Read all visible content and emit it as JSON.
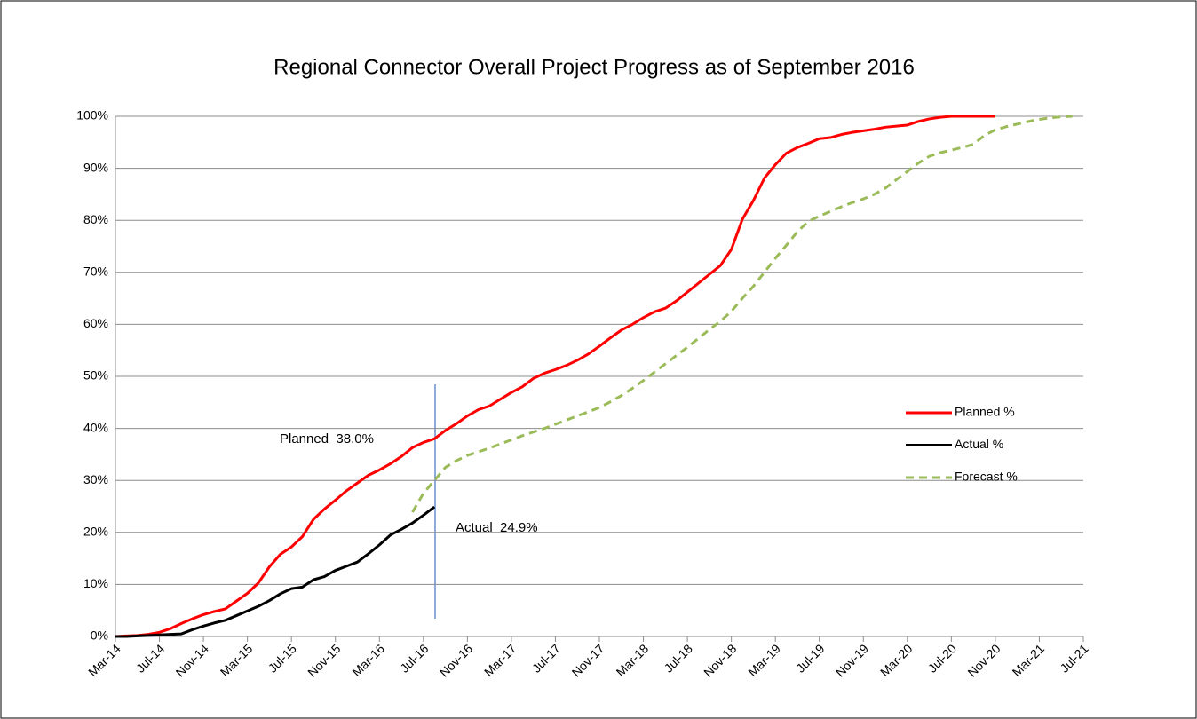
{
  "chart_data": {
    "type": "line",
    "title": "Regional Connector Overall Project Progress as of September 2016",
    "categories": [
      "Mar-14",
      null,
      null,
      null,
      "Jul-14",
      null,
      null,
      null,
      "Nov-14",
      null,
      null,
      null,
      "Mar-15",
      null,
      null,
      null,
      "Jul-15",
      null,
      null,
      null,
      "Nov-15",
      null,
      null,
      null,
      "Mar-16",
      null,
      null,
      null,
      "Jul-16",
      null,
      null,
      null,
      "Nov-16",
      null,
      null,
      null,
      "Mar-17",
      null,
      null,
      null,
      "Jul-17",
      null,
      null,
      null,
      "Nov-17",
      null,
      null,
      null,
      "Mar-18",
      null,
      null,
      null,
      "Jul-18",
      null,
      null,
      null,
      "Nov-18",
      null,
      null,
      null,
      "Mar-19",
      null,
      null,
      null,
      "Jul-19",
      null,
      null,
      null,
      "Nov-19",
      null,
      null,
      null,
      "Mar-20",
      null,
      null,
      null,
      "Jul-20",
      null,
      null,
      null,
      "Nov-20",
      null,
      null,
      null,
      "Mar-21",
      null,
      null,
      null,
      "Jul-21"
    ],
    "series": [
      {
        "name": "Planned %",
        "color": "#ff0000",
        "dash": false,
        "values": [
          0,
          0.1,
          0.2,
          0.4,
          0.8,
          1.5,
          2.5,
          3.4,
          4.2,
          4.8,
          5.3,
          6.8,
          8.3,
          10.3,
          13.4,
          15.8,
          17.2,
          19.2,
          22.5,
          24.5,
          26.2,
          28.0,
          29.5,
          31.0,
          32.0,
          33.2,
          34.6,
          36.3,
          37.3,
          38.0,
          39.6,
          40.9,
          42.4,
          43.6,
          44.3,
          45.6,
          46.9,
          48.0,
          49.6,
          50.6,
          51.3,
          52.1,
          53.1,
          54.3,
          55.8,
          57.4,
          58.9,
          60.0,
          61.3,
          62.4,
          63.1,
          64.5,
          66.2,
          67.9,
          69.6,
          71.3,
          74.4,
          80.2,
          83.8,
          88.1,
          90.7,
          92.9,
          94.0,
          94.8,
          95.7,
          95.9,
          96.5,
          96.9,
          97.2,
          97.5,
          97.9,
          98.1,
          98.3,
          99.0,
          99.5,
          99.8,
          100,
          100,
          100,
          100,
          100,
          null,
          null,
          null,
          null,
          null,
          null,
          null,
          null
        ]
      },
      {
        "name": "Actual %",
        "color": "#000000",
        "dash": false,
        "values": [
          0,
          0,
          0.1,
          0.2,
          0.3,
          0.4,
          0.5,
          1.3,
          2.0,
          2.6,
          3.1,
          4.0,
          4.9,
          5.8,
          6.9,
          8.2,
          9.2,
          9.5,
          10.9,
          11.5,
          12.7,
          13.5,
          14.3,
          15.9,
          17.6,
          19.5,
          20.6,
          21.8,
          23.3,
          24.9,
          null,
          null,
          null,
          null,
          null,
          null,
          null,
          null,
          null,
          null,
          null,
          null,
          null,
          null,
          null,
          null,
          null,
          null,
          null,
          null,
          null,
          null,
          null,
          null,
          null,
          null,
          null,
          null,
          null,
          null,
          null,
          null,
          null,
          null,
          null,
          null,
          null,
          null,
          null,
          null,
          null,
          null,
          null,
          null,
          null,
          null,
          null,
          null,
          null,
          null,
          null,
          null,
          null,
          null,
          null,
          null,
          null,
          null,
          null
        ]
      },
      {
        "name": "Forecast %",
        "color": "#9bbb59",
        "dash": true,
        "values": [
          null,
          null,
          null,
          null,
          null,
          null,
          null,
          null,
          null,
          null,
          null,
          null,
          null,
          null,
          null,
          null,
          null,
          null,
          null,
          null,
          null,
          null,
          null,
          null,
          null,
          null,
          null,
          23.9,
          27.5,
          30.0,
          32.5,
          33.8,
          34.8,
          35.5,
          36.2,
          37.0,
          37.8,
          38.6,
          39.3,
          40.0,
          40.8,
          41.6,
          42.4,
          43.2,
          44.0,
          45.1,
          46.3,
          47.7,
          49.2,
          50.8,
          52.4,
          54.0,
          55.6,
          57.3,
          59.0,
          60.6,
          62.5,
          65.0,
          67.3,
          70.0,
          72.7,
          75.2,
          77.8,
          79.8,
          80.8,
          81.7,
          82.6,
          83.4,
          84.1,
          85.0,
          86.2,
          87.8,
          89.4,
          91.0,
          92.3,
          93.0,
          93.5,
          94.0,
          94.6,
          96.3,
          97.4,
          98.0,
          98.5,
          99.0,
          99.4,
          99.7,
          99.9,
          100,
          null
        ]
      }
    ],
    "ylim": [
      0,
      100
    ],
    "yticks": [
      {
        "value": 0,
        "label": "0%"
      },
      {
        "value": 10,
        "label": "10%"
      },
      {
        "value": 20,
        "label": "20%"
      },
      {
        "value": 30,
        "label": "30%"
      },
      {
        "value": 40,
        "label": "40%"
      },
      {
        "value": 50,
        "label": "50%"
      },
      {
        "value": 60,
        "label": "60%"
      },
      {
        "value": 70,
        "label": "70%"
      },
      {
        "value": 80,
        "label": "80%"
      },
      {
        "value": 90,
        "label": "90%"
      },
      {
        "value": 100,
        "label": "100%"
      }
    ],
    "grid": true,
    "legend": "right",
    "annotations": [
      "Planned  38.0%",
      "Actual  24.9%"
    ]
  }
}
